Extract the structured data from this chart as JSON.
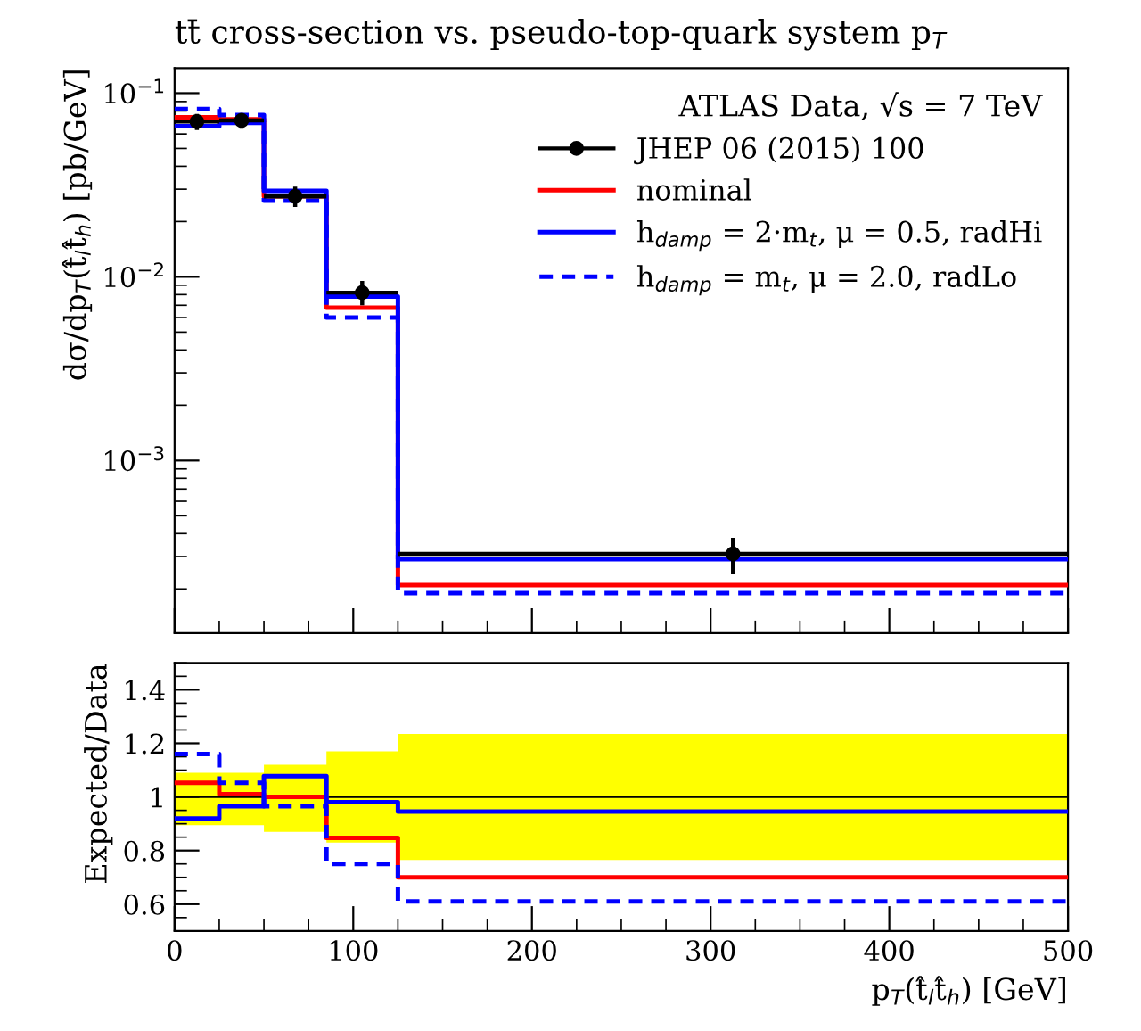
{
  "chart_data": [
    {
      "type": "step",
      "title": "tt̄ cross-section vs. pseudo-top-quark system p$_{T}$",
      "ylabel": "dσ/dp$_{T}$(t̂$_{l}$t̂$_{h}$) [pb/GeV]",
      "legend_title": "ATLAS Data, √s = 7 TeV",
      "log": "y",
      "xlim": [
        0,
        500
      ],
      "ylim": [
        0.000115,
        0.137
      ],
      "yticks": [
        {
          "value": 0.001,
          "label": "10$^{−3}$"
        },
        {
          "value": 0.01,
          "label": "10$^{−2}$"
        },
        {
          "value": 0.1,
          "label": "10$^{−1}$"
        }
      ],
      "tick_labels": "y",
      "legend": "top right",
      "series": [
        {
          "name": "JHEP 06 (2015) 100",
          "type": "scatter",
          "color": "#000000",
          "marker": "circle",
          "x": [
            12.5,
            37.5,
            67.5,
            105,
            312.5
          ],
          "values": [
            0.07,
            0.071,
            0.0274,
            0.0082,
            0.00031
          ],
          "xerrors": [
            12.5,
            12.5,
            17.5,
            20,
            187.5
          ],
          "errors": [
            [
              0.063,
              0.077
            ],
            [
              0.064,
              0.078
            ],
            [
              0.024,
              0.031
            ],
            [
              0.007,
              0.0095
            ],
            [
              0.00024,
              0.00038
            ]
          ]
        },
        {
          "name": "nominal",
          "color": "#ff0000",
          "line_style": "solid",
          "x": [
            0,
            25,
            50,
            85,
            125,
            500
          ],
          "values": [
            0.074,
            0.072,
            0.0275,
            0.0068,
            0.00021,
            0.00021
          ]
        },
        {
          "name": "h$_{damp}$ = 2·m$_{t}$, μ = 0.5, radHi",
          "color": "#0000ff",
          "line_style": "solid",
          "x": [
            0,
            25,
            50,
            85,
            125,
            500
          ],
          "values": [
            0.066,
            0.069,
            0.0294,
            0.0078,
            0.00029,
            0.00029
          ]
        },
        {
          "name": "h$_{damp}$ = m$_{t}$, μ = 2.0, radLo",
          "color": "#0000ff",
          "line_style": "dashed",
          "x": [
            0,
            25,
            50,
            85,
            125,
            500
          ],
          "values": [
            0.082,
            0.076,
            0.026,
            0.006,
            0.00019,
            0.00019
          ]
        }
      ]
    },
    {
      "type": "step",
      "xlabel": "p$_{T}$(t̂$_{l}$t̂$_{h}$) [GeV]",
      "ylabel": "Expected/Data",
      "xlim": [
        0,
        500
      ],
      "ylim": [
        0.5,
        1.5
      ],
      "xticks": [
        0,
        100,
        200,
        300,
        400,
        500
      ],
      "yticks": [
        0.6,
        0.8,
        1,
        1.2,
        1.4
      ],
      "series": [
        {
          "color": "#000000",
          "line_style": "solid",
          "x": [
            0,
            25,
            50,
            85,
            125,
            500
          ],
          "values": [
            1,
            1,
            1,
            1,
            1,
            1
          ],
          "lower": [
            0.895,
            0.895,
            0.87,
            0.83,
            0.765,
            0.765
          ],
          "upper": [
            1.09,
            1.09,
            1.12,
            1.17,
            1.235,
            1.235
          ]
        },
        {
          "color": "#ff0000",
          "line_style": "solid",
          "x": [
            0,
            25,
            50,
            85,
            125,
            500
          ],
          "values": [
            1.053,
            1.01,
            1.0,
            0.847,
            0.7,
            0.7
          ]
        },
        {
          "color": "#0000ff",
          "line_style": "solid",
          "x": [
            0,
            25,
            50,
            85,
            125,
            500
          ],
          "values": [
            0.92,
            0.965,
            1.078,
            0.98,
            0.945,
            0.945
          ]
        },
        {
          "color": "#0000ff",
          "line_style": "dashed",
          "x": [
            0,
            25,
            50,
            85,
            125,
            500
          ],
          "values": [
            1.16,
            1.053,
            0.965,
            0.75,
            0.61,
            0.61
          ]
        }
      ]
    }
  ]
}
